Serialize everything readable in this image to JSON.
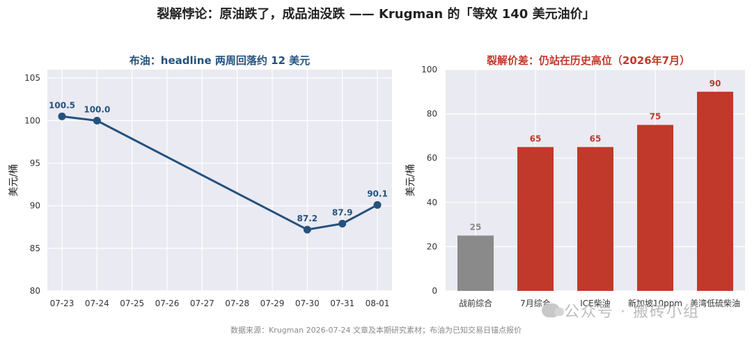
{
  "title": "裂解悖论：原油跌了，成品油没跌 —— Krugman 的「等效 140 美元油价」",
  "footnote": "数据来源：Krugman 2026-07-24 文章及本期研究素材；布油为已知交易日锚点报价",
  "watermark": "公众号 · 搬砖小组",
  "colors": {
    "line": "#24527e",
    "bar_red": "#c0392b",
    "bar_gray": "#8a8a8a",
    "plot_bg": "#eaeaf2",
    "grid": "#ffffff"
  },
  "chart_data": [
    {
      "type": "line",
      "title": "布油：headline 两周回落约 12 美元",
      "ylabel": "美元/桶",
      "xlabel": "",
      "x": [
        "07-23",
        "07-24",
        "07-25",
        "07-26",
        "07-27",
        "07-28",
        "07-29",
        "07-30",
        "07-31",
        "08-01"
      ],
      "points": [
        {
          "x": "07-23",
          "y": 100.5,
          "label": "100.5"
        },
        {
          "x": "07-24",
          "y": 100.0,
          "label": "100.0"
        },
        {
          "x": "07-30",
          "y": 87.2,
          "label": "87.2"
        },
        {
          "x": "07-31",
          "y": 87.9,
          "label": "87.9"
        },
        {
          "x": "08-01",
          "y": 90.1,
          "label": "90.1"
        }
      ],
      "ylim": [
        80,
        106
      ],
      "yticks": [
        80,
        85,
        90,
        95,
        100,
        105
      ],
      "grid": true
    },
    {
      "type": "bar",
      "title": "裂解价差：仍站在历史高位（2026年7月）",
      "ylabel": "美元/桶",
      "xlabel": "",
      "categories": [
        "战前综合",
        "7月综合",
        "ICE柴油",
        "新加坡10ppm",
        "美湾低硫柴油"
      ],
      "values": [
        25,
        65,
        65,
        75,
        90
      ],
      "labels": [
        "25",
        "65",
        "65",
        "75",
        "90"
      ],
      "bar_colors": [
        "#8a8a8a",
        "#c0392b",
        "#c0392b",
        "#c0392b",
        "#c0392b"
      ],
      "ylim": [
        0,
        100
      ],
      "yticks": [
        0,
        20,
        40,
        60,
        80,
        100
      ],
      "grid": true
    }
  ]
}
